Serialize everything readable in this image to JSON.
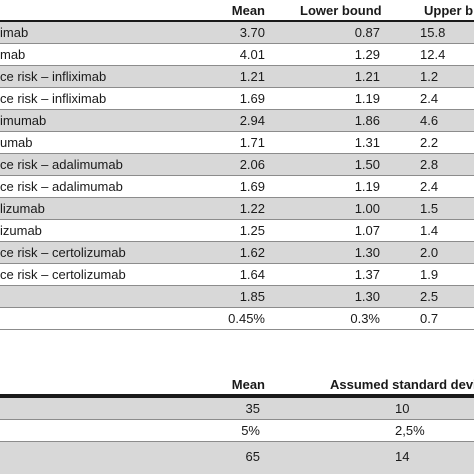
{
  "header": {
    "mean": "Mean",
    "lower": "Lower bound",
    "upper": "Upper b"
  },
  "rows": [
    {
      "label": "imab",
      "mean": "3.70",
      "lower": "0.87",
      "upper": "15.8"
    },
    {
      "label": "mab",
      "mean": "4.01",
      "lower": "1.29",
      "upper": "12.4"
    },
    {
      "label": "ce risk – infliximab",
      "mean": "1.21",
      "lower": "1.21",
      "upper": "1.2"
    },
    {
      "label": "ce risk – infliximab",
      "mean": "1.69",
      "lower": "1.19",
      "upper": "2.4"
    },
    {
      "label": "imumab",
      "mean": "2.94",
      "lower": "1.86",
      "upper": "4.6"
    },
    {
      "label": "umab",
      "mean": "1.71",
      "lower": "1.31",
      "upper": "2.2"
    },
    {
      "label": "ce risk – adalimumab",
      "mean": "2.06",
      "lower": "1.50",
      "upper": "2.8"
    },
    {
      "label": "ce risk – adalimumab",
      "mean": "1.69",
      "lower": "1.19",
      "upper": "2.4"
    },
    {
      "label": "lizumab",
      "mean": "1.22",
      "lower": "1.00",
      "upper": "1.5"
    },
    {
      "label": "izumab",
      "mean": "1.25",
      "lower": "1.07",
      "upper": "1.4"
    },
    {
      "label": "ce risk – certolizumab",
      "mean": "1.62",
      "lower": "1.30",
      "upper": "2.0"
    },
    {
      "label": "ce risk – certolizumab",
      "mean": "1.64",
      "lower": "1.37",
      "upper": "1.9"
    },
    {
      "label": "",
      "mean": "1.85",
      "lower": "1.30",
      "upper": "2.5"
    },
    {
      "label": "",
      "mean": "0.45%",
      "lower": "0.3%",
      "upper": "0.7"
    }
  ],
  "header2": {
    "mean": "Mean",
    "sd": "Assumed standard deviati"
  },
  "rows2": [
    {
      "mean": "35",
      "sd": "10"
    },
    {
      "mean": "5%",
      "sd": "2,5%"
    },
    {
      "mean": "65",
      "sd": "14"
    }
  ]
}
